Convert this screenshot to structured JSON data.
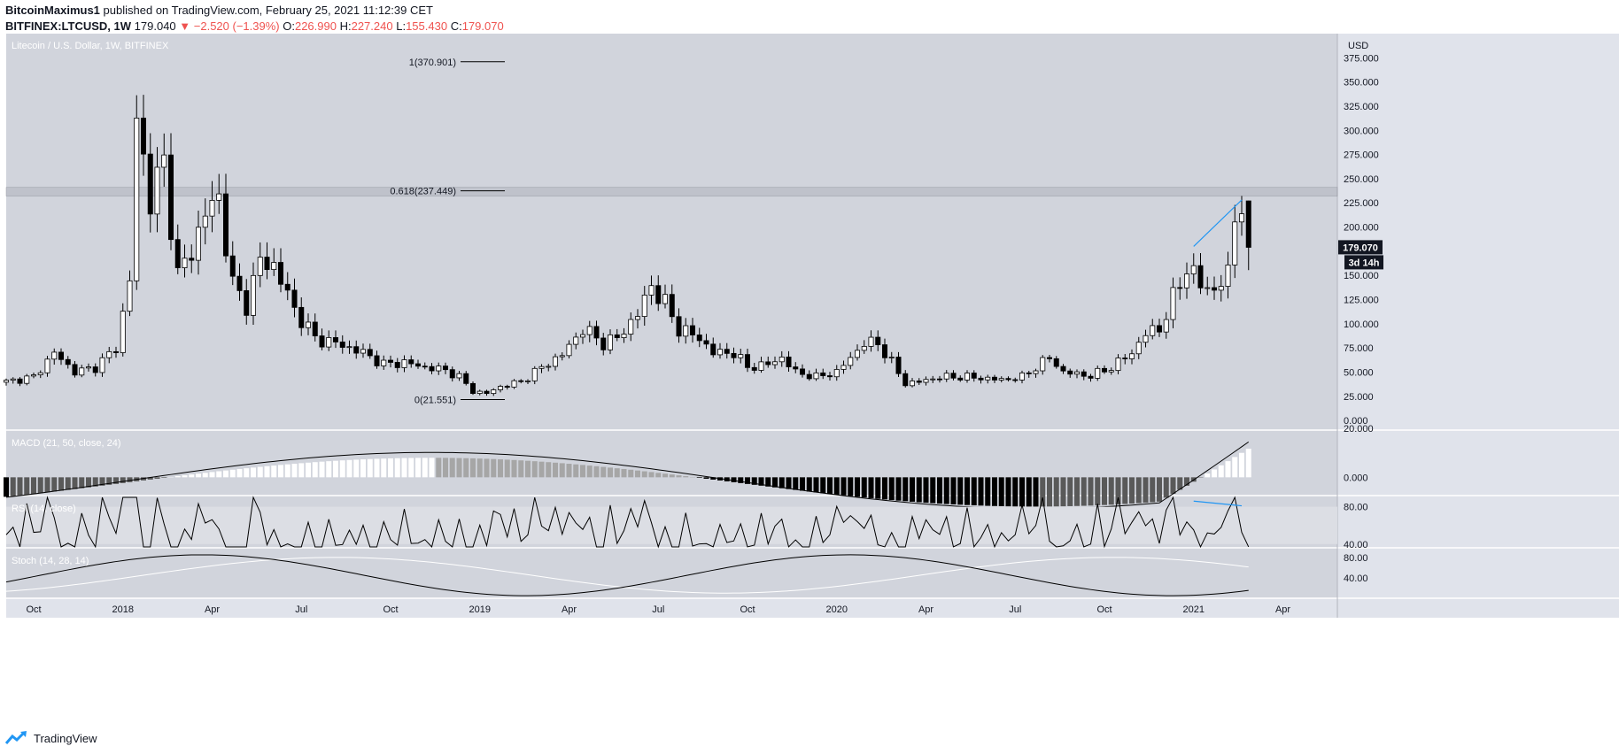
{
  "header": {
    "author": "BitcoinMaximus1",
    "published_text": "published on TradingView.com, February 25, 2021 11:12:39 CET",
    "symbol": "BITFINEX:LTCUSD, 1W",
    "last": "179.040",
    "change": "▼ −2.520 (−1.39%)",
    "o_label": "O:",
    "o_val": "226.990",
    "h_label": "H:",
    "h_val": "227.240",
    "l_label": "L:",
    "l_val": "155.430",
    "c_label": "C:",
    "c_val": "179.070"
  },
  "footer": {
    "brand": "TradingView"
  },
  "colors": {
    "background": "#d1d4dc",
    "up": "#ffffff",
    "down": "#000000",
    "macd_grey": "#a6a6a6",
    "macd_dark": "#595959",
    "accent_blue": "#2196f3",
    "price_tag": "#131722"
  },
  "chart_data": [
    {
      "type": "candlestick",
      "title": "Litecoin / U.S. Dollar, 1W, BITFINEX",
      "currency": "USD",
      "y_ticks": [
        "375.000",
        "350.000",
        "325.000",
        "300.000",
        "275.000",
        "250.000",
        "225.000",
        "200.000",
        "150.000",
        "125.000",
        "100.000",
        "75.000",
        "50.000",
        "25.000",
        "0.000"
      ],
      "ylim": [
        -10,
        400
      ],
      "x_ticks": [
        "Oct",
        "2018",
        "Apr",
        "Jul",
        "Oct",
        "2019",
        "Apr",
        "Jul",
        "Oct",
        "2020",
        "Apr",
        "Jul",
        "Oct",
        "2021",
        "Apr"
      ],
      "x_tick_weeks": [
        4,
        17,
        30,
        43,
        56,
        69,
        82,
        95,
        108,
        121,
        134,
        147,
        160,
        173,
        186
      ],
      "last_price": "179.070",
      "countdown": "3d 14h",
      "fib_levels": [
        {
          "label": "1(370.901)",
          "value": 370.901
        },
        {
          "label": "0.618(237.449)",
          "value": 237.449
        },
        {
          "label": "0(21.551)",
          "value": 21.551
        }
      ],
      "resistance_zone": [
        232,
        241
      ],
      "week_start": [
        0,
        1
      ],
      "ohlc_anchors": [
        [
          0,
          40
        ],
        [
          4,
          45
        ],
        [
          7,
          70
        ],
        [
          10,
          50
        ],
        [
          13,
          55
        ],
        [
          16,
          75
        ],
        [
          18,
          145
        ],
        [
          19,
          310
        ],
        [
          21,
          230
        ],
        [
          23,
          265
        ],
        [
          25,
          150
        ],
        [
          27,
          175
        ],
        [
          29,
          215
        ],
        [
          31,
          230
        ],
        [
          33,
          140
        ],
        [
          35,
          120
        ],
        [
          37,
          165
        ],
        [
          39,
          160
        ],
        [
          42,
          115
        ],
        [
          45,
          85
        ],
        [
          48,
          80
        ],
        [
          52,
          70
        ],
        [
          55,
          58
        ],
        [
          58,
          60
        ],
        [
          61,
          55
        ],
        [
          64,
          52
        ],
        [
          66,
          45
        ],
        [
          68,
          30
        ],
        [
          70,
          28
        ],
        [
          72,
          35
        ],
        [
          75,
          40
        ],
        [
          78,
          55
        ],
        [
          81,
          68
        ],
        [
          84,
          95
        ],
        [
          87,
          80
        ],
        [
          89,
          85
        ],
        [
          92,
          110
        ],
        [
          94,
          140
        ],
        [
          96,
          120
        ],
        [
          98,
          95
        ],
        [
          101,
          85
        ],
        [
          103,
          70
        ],
        [
          106,
          70
        ],
        [
          108,
          55
        ],
        [
          111,
          58
        ],
        [
          113,
          65
        ],
        [
          115,
          50
        ],
        [
          118,
          45
        ],
        [
          121,
          50
        ],
        [
          123,
          65
        ],
        [
          125,
          80
        ],
        [
          127,
          80
        ],
        [
          129,
          60
        ],
        [
          131,
          38
        ],
        [
          133,
          40
        ],
        [
          136,
          45
        ],
        [
          140,
          45
        ],
        [
          145,
          42
        ],
        [
          148,
          45
        ],
        [
          150,
          55
        ],
        [
          152,
          65
        ],
        [
          154,
          50
        ],
        [
          158,
          46
        ],
        [
          161,
          55
        ],
        [
          164,
          70
        ],
        [
          166,
          90
        ],
        [
          168,
          95
        ],
        [
          170,
          125
        ],
        [
          172,
          160
        ],
        [
          174,
          140
        ],
        [
          176,
          135
        ],
        [
          178,
          150
        ],
        [
          179,
          215
        ],
        [
          180,
          225
        ],
        [
          181,
          179
        ]
      ],
      "rising_line": [
        [
          173,
          180
        ],
        [
          180,
          228
        ]
      ]
    },
    {
      "type": "histogram",
      "title": "MACD (21, 50, close, 24)",
      "y_ticks": [
        "20.000",
        "0.000"
      ],
      "ylim": [
        -7.5,
        19
      ]
    },
    {
      "type": "line",
      "title": "RSI (14, close)",
      "y_ticks": [
        "80.00",
        "40.00"
      ],
      "ylim": [
        36,
        91
      ]
    },
    {
      "type": "line",
      "title": "Stoch (14, 28, 14)",
      "y_ticks": [
        "80.00",
        "40.00"
      ],
      "ylim": [
        0,
        97
      ]
    }
  ]
}
